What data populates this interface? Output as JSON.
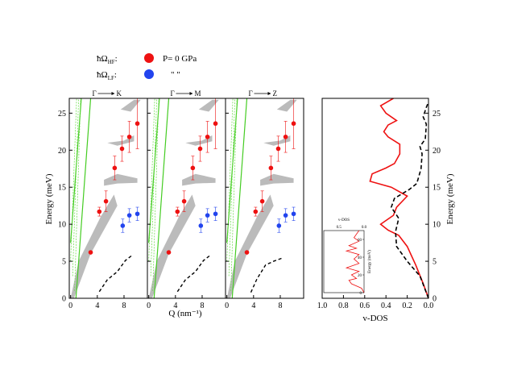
{
  "chart_data": [
    {
      "type": "scatter",
      "panels": [
        "Γ → K",
        "Γ → M",
        "Γ → Z"
      ],
      "xlabel": "Q (nm⁻¹)",
      "ylabel": "Energy (meV)",
      "xticks": [
        "0",
        "4",
        "8"
      ],
      "yticks": [
        "0",
        "5",
        "10",
        "15",
        "20",
        "25"
      ],
      "ylim": [
        0,
        27
      ],
      "xlim": [
        -0.2,
        11.5
      ],
      "legend": {
        "hf_label": "ħΩ",
        "hf_sub": "HF",
        "lf_label": "ħΩ",
        "lf_sub": "LF",
        "condition": "P= 0 GPa",
        "ditto": "\"     \""
      },
      "series": [
        {
          "name": "HF",
          "color": "#ee1111",
          "points": [
            {
              "x": 3.0,
              "y": 6.2,
              "err": 0.0
            },
            {
              "x": 4.3,
              "y": 11.7,
              "err": 0.6
            },
            {
              "x": 5.3,
              "y": 13.1,
              "err": 1.4
            },
            {
              "x": 6.6,
              "y": 17.6,
              "err": 1.6
            },
            {
              "x": 7.7,
              "y": 20.2,
              "err": 1.7
            },
            {
              "x": 8.8,
              "y": 21.8,
              "err": 2.1
            },
            {
              "x": 10.0,
              "y": 23.6,
              "err": 3.4
            }
          ]
        },
        {
          "name": "LF",
          "color": "#2244ee",
          "points": [
            {
              "x": 7.8,
              "y": 9.8,
              "err": 0.9
            },
            {
              "x": 8.8,
              "y": 11.2,
              "err": 0.9
            },
            {
              "x": 10.0,
              "y": 11.4,
              "err": 0.9
            }
          ]
        }
      ],
      "dashed_curve": [
        [
          4.3,
          0.9
        ],
        [
          5.5,
          2.5
        ],
        [
          7.0,
          3.6
        ],
        [
          8.2,
          5.1
        ],
        [
          9.2,
          5.8
        ]
      ],
      "dashed_curve_z": [
        [
          3.6,
          0.8
        ],
        [
          4.5,
          2.6
        ],
        [
          5.8,
          4.5
        ],
        [
          7.0,
          5.0
        ],
        [
          8.2,
          5.4
        ]
      ]
    },
    {
      "type": "line",
      "title": "v-DOS",
      "xlabel": "v-DOS",
      "ylabel": "Energy (meV)",
      "xticks": [
        "1.0",
        "0.8",
        "0.6",
        "0.4",
        "0.2",
        "0.0"
      ],
      "yticks": [
        "0",
        "5",
        "10",
        "15",
        "20",
        "25"
      ],
      "xlim": [
        1.0,
        0.0
      ],
      "ylim": [
        0,
        27
      ],
      "series": [
        {
          "name": "solid",
          "color": "#ee1111",
          "points": [
            [
              0.0,
              0.0
            ],
            [
              0.05,
              2.0
            ],
            [
              0.12,
              4.5
            ],
            [
              0.2,
              7.0
            ],
            [
              0.28,
              8.5
            ],
            [
              0.38,
              9.2
            ],
            [
              0.45,
              10.0
            ],
            [
              0.33,
              11.2
            ],
            [
              0.3,
              12.3
            ],
            [
              0.2,
              13.8
            ],
            [
              0.35,
              15.0
            ],
            [
              0.55,
              15.8
            ],
            [
              0.53,
              16.8
            ],
            [
              0.4,
              17.6
            ],
            [
              0.32,
              18.2
            ],
            [
              0.27,
              19.5
            ],
            [
              0.27,
              20.8
            ],
            [
              0.38,
              21.8
            ],
            [
              0.42,
              22.5
            ],
            [
              0.38,
              23.4
            ],
            [
              0.3,
              24.0
            ],
            [
              0.4,
              25.0
            ],
            [
              0.45,
              26.0
            ],
            [
              0.33,
              27.0
            ]
          ]
        },
        {
          "name": "dashed",
          "color": "#000000",
          "points": [
            [
              0.0,
              0.0
            ],
            [
              0.08,
              3.0
            ],
            [
              0.2,
              5.0
            ],
            [
              0.3,
              7.0
            ],
            [
              0.31,
              9.0
            ],
            [
              0.28,
              10.8
            ],
            [
              0.35,
              12.3
            ],
            [
              0.32,
              13.5
            ],
            [
              0.18,
              14.7
            ],
            [
              0.11,
              15.5
            ],
            [
              0.07,
              17.5
            ],
            [
              0.06,
              19.5
            ],
            [
              0.08,
              20.5
            ],
            [
              0.03,
              21.5
            ],
            [
              0.02,
              23.5
            ],
            [
              0.05,
              24.5
            ],
            [
              0.02,
              25.8
            ],
            [
              0.0,
              26.5
            ]
          ]
        }
      ],
      "inset": {
        "title": "v-DOS",
        "ylabel": "Energy (meV)",
        "xticks": [
          "0.5",
          "0.0"
        ],
        "yticks": [
          "0",
          "20",
          "40",
          "60"
        ],
        "xlim": [
          0.8,
          0.0
        ],
        "ylim": [
          0,
          70
        ],
        "points": [
          [
            0.0,
            0
          ],
          [
            0.05,
            5
          ],
          [
            0.25,
            10
          ],
          [
            0.3,
            14
          ],
          [
            0.15,
            16
          ],
          [
            0.25,
            20
          ],
          [
            0.1,
            24
          ],
          [
            0.35,
            28
          ],
          [
            0.1,
            33
          ],
          [
            0.2,
            38
          ],
          [
            0.1,
            43
          ],
          [
            0.35,
            47
          ],
          [
            0.15,
            50
          ],
          [
            0.3,
            53
          ],
          [
            0.1,
            58
          ],
          [
            0.2,
            62
          ],
          [
            0.15,
            66
          ],
          [
            0.1,
            70
          ]
        ]
      }
    }
  ]
}
